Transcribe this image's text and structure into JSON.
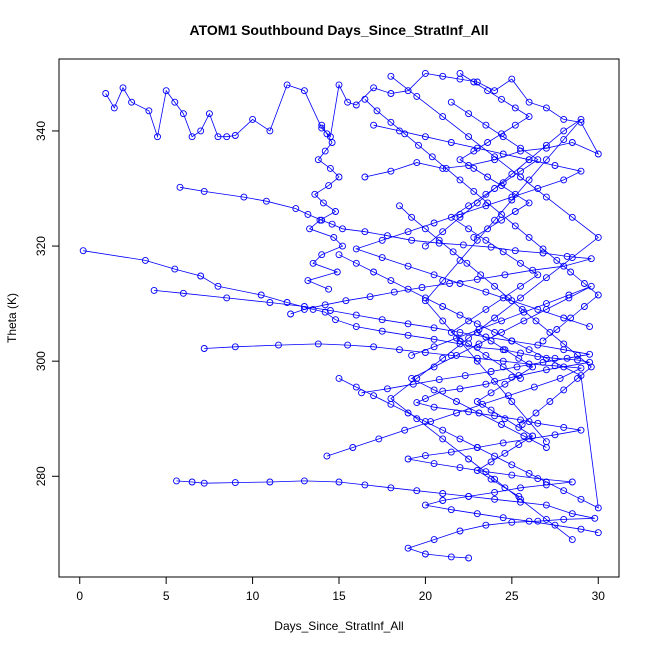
{
  "chart_data": {
    "type": "scatter",
    "title": "ATOM1 Southbound Days_Since_StratInf_All",
    "xlabel": "Days_Since_StratInf_All",
    "ylabel": "Theta (K)",
    "xlim": [
      -1.2,
      31.2
    ],
    "ylim": [
      262.5,
      352.5
    ],
    "xticks": [
      0,
      5,
      10,
      15,
      20,
      25,
      30
    ],
    "yticks": [
      280,
      300,
      320,
      340
    ],
    "grid": false,
    "legend": "none",
    "markers": "open-circle",
    "connected": true,
    "color": "#0000ff",
    "series": [
      {
        "x": [
          0.2,
          3.8,
          5.5,
          7.0,
          8.0,
          10.5,
          12.0,
          13.5,
          14.2,
          14.8,
          16.0,
          17.5,
          19.0,
          20.5,
          22.0,
          23.0,
          24.5,
          25.5,
          26.5,
          27.5,
          28.8,
          29.5,
          27.0,
          25.0,
          23.5,
          22.0,
          21.0,
          20.0,
          19.5,
          20.5,
          22.5,
          24.0,
          25.5,
          26.5,
          28.0,
          29.0,
          27.5,
          26.0,
          24.5,
          23.0,
          21.5,
          20.0,
          19.0,
          20.5,
          22.0,
          23.5,
          25.0,
          26.5,
          28.5,
          27.0,
          25.5,
          24.0,
          22.5,
          21.0,
          20.0,
          21.5,
          23.0,
          24.5,
          26.0,
          27.5,
          29.0,
          30.0
        ],
        "y": [
          319.2,
          317.5,
          316.0,
          314.8,
          313.0,
          311.5,
          310.2,
          309.0,
          308.5,
          307.2,
          306.0,
          305.2,
          304.5,
          303.8,
          303.0,
          302.4,
          302.0,
          301.4,
          300.8,
          300.5,
          300.2,
          299.8,
          298.5,
          297.2,
          296.0,
          295.2,
          294.8,
          293.5,
          292.8,
          292.0,
          291.2,
          290.5,
          289.8,
          289.2,
          288.5,
          288.0,
          287.2,
          286.5,
          285.8,
          285.0,
          284.2,
          283.6,
          283.0,
          282.2,
          281.5,
          280.8,
          280.2,
          279.6,
          279.0,
          278.5,
          278.0,
          277.2,
          276.5,
          275.8,
          275.0,
          274.2,
          273.5,
          272.8,
          272.2,
          271.5,
          270.8,
          270.2
        ]
      },
      {
        "x": [
          1.5,
          2.0,
          2.5,
          3.0,
          4.0,
          4.5,
          5.0,
          5.5,
          6.0,
          6.5,
          7.0,
          7.5,
          8.0,
          8.5,
          9.0,
          10.0,
          11.0,
          12.0,
          13.0,
          14.0,
          14.5,
          15.0,
          15.5,
          16.0,
          17.0,
          18.0,
          19.0,
          20.0,
          21.0,
          22.0,
          23.0,
          24.0,
          25.0,
          26.0,
          27.0,
          28.0,
          29.0,
          30.0,
          28.5,
          27.0,
          25.5,
          24.0,
          22.5,
          21.0,
          19.5,
          18.0,
          16.5
        ],
        "y": [
          346.5,
          344.0,
          347.5,
          345.0,
          343.5,
          339.0,
          347.0,
          345.0,
          343.0,
          339.0,
          340.0,
          343.0,
          339.0,
          339.0,
          339.2,
          342.0,
          340.0,
          348.0,
          347.0,
          340.5,
          339.0,
          348.0,
          345.0,
          344.5,
          347.5,
          346.5,
          347.0,
          350.0,
          349.5,
          349.0,
          348.5,
          347.0,
          349.0,
          345.0,
          344.0,
          342.0,
          341.5,
          336.0,
          338.0,
          337.0,
          336.5,
          335.0,
          334.0,
          333.5,
          334.5,
          333.0,
          332.0
        ]
      },
      {
        "x": [
          5.8,
          7.2,
          9.5,
          10.8,
          12.5,
          13.2,
          14.0,
          14.6,
          15.2,
          16.5,
          17.8,
          19.2,
          20.8,
          22.2,
          23.8,
          25.2,
          26.8,
          28.2,
          29.6,
          28.0,
          26.2,
          24.6,
          23.0,
          21.4,
          19.8,
          18.2,
          16.8,
          15.4,
          14.2,
          13.0,
          12.2
        ],
        "y": [
          330.2,
          329.5,
          328.5,
          327.8,
          326.5,
          325.5,
          324.5,
          323.8,
          323.0,
          322.5,
          321.8,
          321.0,
          320.5,
          320.2,
          319.8,
          319.2,
          318.8,
          318.2,
          317.8,
          316.5,
          315.8,
          315.0,
          314.2,
          313.5,
          312.8,
          312.0,
          311.2,
          310.5,
          309.8,
          309.0,
          308.2
        ]
      },
      {
        "x": [
          4.3,
          6.0,
          8.5,
          11.0,
          13.0,
          14.5,
          16.0,
          17.5,
          19.0,
          20.5,
          22.0,
          23.5,
          25.0,
          26.5,
          28.0,
          29.5,
          28.2,
          26.8,
          25.3,
          23.8,
          22.3,
          20.8,
          19.3,
          17.8,
          16.3
        ],
        "y": [
          312.3,
          311.8,
          311.0,
          310.2,
          309.5,
          308.8,
          308.0,
          307.2,
          306.5,
          305.8,
          305.0,
          304.2,
          303.5,
          302.8,
          302.0,
          301.2,
          300.5,
          299.8,
          299.0,
          298.2,
          297.5,
          296.8,
          296.0,
          295.2,
          294.5
        ]
      },
      {
        "x": [
          7.2,
          9.0,
          11.5,
          13.8,
          15.5,
          17.0,
          18.5,
          20.0,
          21.5,
          23.0,
          24.5,
          26.0,
          27.5,
          29.0,
          27.8,
          26.3,
          24.8,
          23.3,
          21.8,
          20.3,
          18.8,
          17.3,
          15.8,
          14.3
        ],
        "y": [
          302.2,
          302.5,
          302.8,
          303.0,
          302.8,
          302.5,
          302.0,
          301.5,
          301.0,
          300.5,
          300.0,
          299.5,
          299.2,
          298.8,
          297.0,
          295.5,
          294.0,
          292.5,
          291.0,
          289.5,
          288.0,
          286.5,
          285.0,
          283.5
        ]
      },
      {
        "x": [
          5.6,
          6.5,
          7.2,
          9.0,
          11.0,
          13.0,
          15.0,
          16.5,
          18.0,
          19.5,
          21.0,
          22.5,
          24.0,
          25.5,
          27.0,
          28.5,
          29.8,
          28.0,
          26.5,
          25.0,
          23.5,
          22.0,
          20.5,
          19.0,
          20.0,
          21.5,
          22.5
        ],
        "y": [
          279.2,
          279.0,
          278.8,
          278.9,
          279.0,
          279.2,
          279.0,
          278.5,
          278.0,
          277.5,
          277.0,
          276.5,
          276.0,
          275.5,
          275.0,
          273.5,
          272.7,
          272.5,
          272.2,
          272.0,
          271.5,
          270.5,
          269.0,
          267.5,
          266.5,
          266.0,
          265.8
        ]
      },
      {
        "x": [
          15.0,
          16.0,
          17.0,
          18.0,
          19.0,
          20.0,
          21.0,
          22.0,
          23.0,
          24.0,
          25.0,
          26.0,
          27.0,
          28.0,
          29.0,
          30.0,
          29.0,
          28.0,
          27.0,
          26.0,
          25.0,
          24.0,
          23.0,
          22.0,
          21.0,
          20.0,
          19.0,
          18.0,
          17.0,
          16.0,
          15.0
        ],
        "y": [
          297.0,
          295.5,
          294.0,
          292.5,
          291.0,
          289.5,
          288.0,
          286.5,
          285.0,
          283.5,
          282.0,
          280.5,
          279.0,
          277.5,
          276.0,
          274.5,
          297.5,
          299.0,
          300.5,
          302.0,
          303.5,
          305.0,
          306.5,
          308.0,
          309.5,
          311.0,
          312.5,
          314.0,
          315.5,
          317.0,
          318.5
        ]
      },
      {
        "x": [
          17.0,
          18.5,
          20.0,
          21.5,
          23.0,
          24.5,
          26.0,
          27.5,
          29.0,
          28.0,
          26.5,
          25.0,
          23.5,
          22.0,
          20.5,
          19.0,
          17.5,
          16.0,
          17.5,
          19.0,
          20.5,
          22.0,
          23.5,
          25.0,
          26.5,
          28.0,
          29.5
        ],
        "y": [
          341.0,
          340.0,
          339.0,
          338.0,
          337.0,
          336.0,
          335.0,
          334.0,
          333.0,
          331.5,
          330.0,
          328.5,
          327.0,
          325.5,
          324.0,
          322.5,
          321.0,
          319.5,
          318.0,
          316.5,
          315.0,
          313.5,
          312.0,
          310.5,
          309.0,
          307.5,
          306.0
        ]
      },
      {
        "x": [
          18.0,
          19.5,
          21.0,
          22.5,
          24.0,
          25.5,
          27.0,
          28.5,
          30.0,
          28.5,
          27.0,
          25.5,
          24.0,
          22.5,
          21.0,
          19.5,
          18.0,
          19.5,
          21.0,
          22.5,
          24.0,
          25.5,
          27.0,
          28.5
        ],
        "y": [
          349.5,
          346.0,
          342.5,
          339.0,
          335.5,
          332.0,
          328.5,
          325.0,
          321.5,
          318.0,
          314.5,
          311.0,
          307.5,
          304.0,
          300.5,
          297.0,
          293.5,
          290.0,
          286.5,
          283.0,
          279.5,
          276.0,
          272.5,
          269.0
        ]
      },
      {
        "x": [
          20.0,
          21.0,
          22.0,
          23.0,
          24.0,
          25.0,
          26.0,
          27.0,
          28.0,
          29.0,
          28.0,
          27.0,
          26.0,
          25.0,
          24.0,
          23.0,
          22.0,
          21.0,
          20.0,
          21.0,
          22.0,
          23.0,
          24.0,
          25.0,
          26.0,
          27.0
        ],
        "y": [
          320.0,
          322.5,
          325.0,
          327.5,
          330.0,
          332.5,
          335.0,
          337.5,
          340.0,
          342.0,
          338.5,
          335.0,
          331.5,
          328.0,
          324.5,
          321.0,
          317.5,
          314.0,
          310.5,
          307.0,
          303.5,
          300.0,
          296.5,
          293.0,
          289.5,
          286.0
        ]
      },
      {
        "x": [
          21.5,
          22.5,
          23.5,
          24.5,
          25.5,
          26.5,
          25.5,
          24.5,
          23.5,
          22.5,
          21.5,
          22.5,
          23.5,
          24.5,
          25.5,
          26.5,
          25.5,
          24.5,
          23.5,
          22.5,
          21.5,
          22.5,
          23.5,
          24.5,
          25.5
        ],
        "y": [
          345.0,
          343.0,
          341.0,
          339.0,
          337.0,
          335.0,
          333.0,
          331.0,
          329.0,
          327.0,
          325.0,
          323.0,
          321.0,
          319.0,
          317.0,
          315.0,
          313.0,
          311.0,
          309.0,
          307.0,
          305.0,
          303.0,
          301.0,
          299.0,
          297.0
        ]
      },
      {
        "x": [
          19.2,
          20.5,
          21.8,
          23.1,
          24.4,
          25.7,
          27.0,
          28.3,
          29.6,
          28.3,
          27.0,
          25.7,
          24.4,
          23.1,
          21.8,
          20.5,
          19.2,
          20.5,
          21.8,
          23.1,
          24.4,
          25.7,
          27.0
        ],
        "y": [
          301.0,
          302.5,
          304.0,
          305.5,
          307.0,
          308.5,
          310.0,
          311.5,
          313.0,
          311.0,
          309.0,
          307.0,
          305.0,
          303.0,
          301.0,
          299.0,
          297.0,
          295.0,
          293.0,
          291.0,
          289.0,
          287.0,
          285.0
        ]
      },
      {
        "x": [
          14.0,
          14.3,
          14.6,
          14.2,
          13.8,
          14.5,
          15.0,
          14.4,
          13.6,
          14.1,
          14.8,
          13.9,
          13.3,
          14.7,
          15.2,
          14.0,
          13.5,
          14.9,
          13.2,
          14.4
        ],
        "y": [
          341.0,
          339.5,
          338.0,
          336.5,
          335.0,
          333.5,
          332.0,
          330.5,
          329.0,
          327.5,
          326.0,
          324.5,
          323.0,
          321.5,
          320.0,
          318.5,
          317.0,
          315.5,
          314.0,
          312.5
        ]
      },
      {
        "x": [
          22.0,
          22.8,
          23.6,
          24.4,
          25.2,
          26.0,
          25.2,
          24.4,
          23.6,
          22.8,
          22.0,
          22.8,
          23.6,
          24.4,
          25.2,
          26.0,
          25.2,
          24.4,
          23.6,
          22.8
        ],
        "y": [
          350.0,
          348.5,
          347.0,
          345.5,
          344.0,
          342.5,
          341.0,
          339.5,
          338.0,
          336.5,
          335.0,
          333.5,
          332.0,
          330.5,
          329.0,
          327.5,
          326.0,
          324.5,
          323.0,
          321.5
        ]
      },
      {
        "x": [
          23.0,
          23.8,
          24.6,
          25.4,
          26.2,
          25.4,
          24.6,
          23.8,
          23.0,
          23.8,
          24.6,
          25.4,
          26.2,
          25.4,
          24.6,
          23.8,
          23.0,
          23.8,
          24.6,
          25.4
        ],
        "y": [
          305.0,
          303.5,
          302.0,
          300.5,
          299.0,
          297.5,
          296.0,
          294.5,
          293.0,
          291.5,
          290.0,
          288.5,
          287.0,
          285.5,
          284.0,
          282.5,
          281.0,
          279.5,
          278.0,
          276.5
        ]
      },
      {
        "x": [
          16.5,
          17.2,
          18.0,
          18.8,
          19.6,
          20.4,
          21.2,
          22.0,
          22.8,
          23.6,
          24.4,
          25.2,
          26.0,
          26.8,
          27.6,
          28.4,
          29.2,
          30.0,
          29.2,
          28.4,
          27.6,
          26.8
        ],
        "y": [
          345.5,
          343.5,
          341.5,
          339.5,
          337.5,
          335.5,
          333.5,
          331.5,
          329.5,
          327.5,
          325.5,
          323.5,
          321.5,
          319.5,
          317.5,
          315.5,
          313.5,
          311.5,
          309.5,
          307.5,
          305.5,
          303.5
        ]
      },
      {
        "x": [
          18.5,
          19.2,
          20.0,
          20.8,
          21.6,
          22.4,
          23.2,
          24.0,
          24.8,
          25.6,
          26.4,
          27.2,
          28.0,
          28.8,
          29.6,
          28.8,
          28.0,
          27.2,
          26.4,
          25.6
        ],
        "y": [
          327.0,
          325.0,
          323.0,
          321.0,
          319.0,
          317.0,
          315.0,
          313.0,
          311.0,
          309.0,
          307.0,
          305.0,
          303.0,
          301.0,
          299.0,
          297.0,
          295.0,
          293.0,
          291.0,
          289.0
        ]
      }
    ]
  }
}
